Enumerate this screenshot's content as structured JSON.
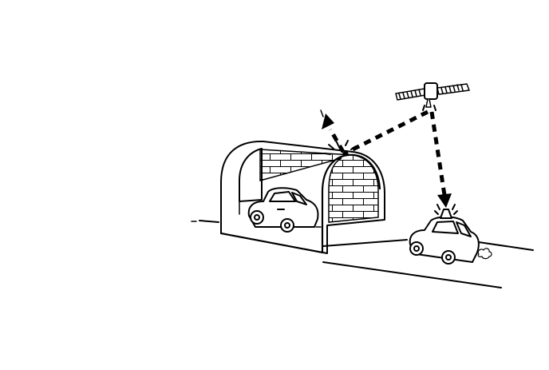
{
  "diagram": {
    "colors": {
      "ink": "#000000",
      "background": "#ffffff"
    },
    "elements": [
      "road",
      "tunnel",
      "car-in-tunnel",
      "car-on-road",
      "satellite",
      "signal-path-reflected",
      "signal-path-received"
    ]
  }
}
